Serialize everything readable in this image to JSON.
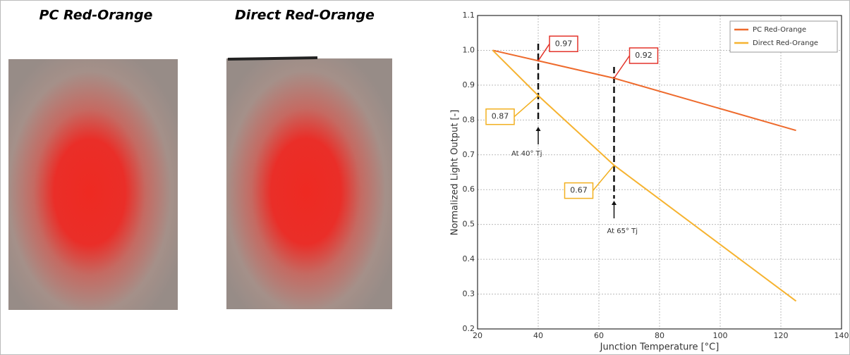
{
  "photos": [
    {
      "title": "PC Red-Orange"
    },
    {
      "title": "Direct Red-Orange"
    }
  ],
  "chart_data": {
    "type": "line",
    "x_label": "Junction Temperature [°C]",
    "y_label": "Normalized Light Output [-]",
    "x": [
      25,
      40,
      65,
      125
    ],
    "series": [
      {
        "name": "PC Red-Orange",
        "color": "#ee6a2c",
        "values": [
          1.0,
          0.97,
          0.92,
          0.77
        ]
      },
      {
        "name": "Direct Red-Orange",
        "color": "#f6b330",
        "values": [
          1.0,
          0.87,
          0.67,
          0.28
        ]
      }
    ],
    "xlim": [
      20,
      140
    ],
    "xticks": [
      20,
      40,
      60,
      80,
      100,
      120,
      140
    ],
    "ylim": [
      0.2,
      1.1
    ],
    "yticks": [
      0.2,
      0.3,
      0.4,
      0.5,
      0.6,
      0.7,
      0.8,
      0.9,
      {
        "value": 1.0,
        "label": "1.0"
      },
      1.1
    ],
    "annotations": [
      "At 40° Tj",
      "At 65° Tj"
    ],
    "grid": true,
    "legend": "upper right"
  }
}
